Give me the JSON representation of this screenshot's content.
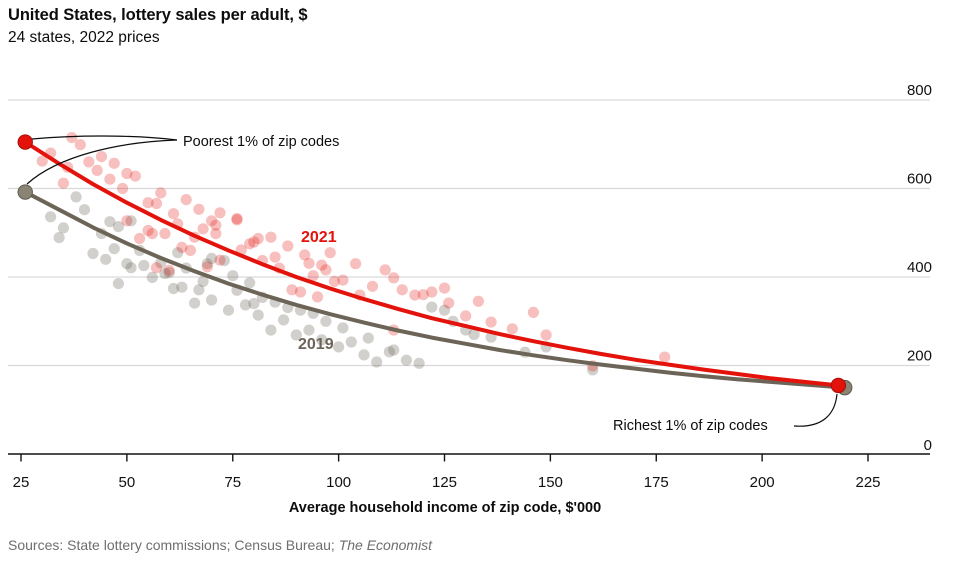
{
  "header": {
    "title": "United States, lottery sales per adult, $",
    "subtitle": "24 states, 2022 prices"
  },
  "footer": {
    "source_prefix": "Sources: State lottery commissions; Census Bureau; ",
    "source_italic": "The Economist"
  },
  "colors": {
    "red_2021": "#E3120B",
    "red_big_dot_stroke": "#a60d07",
    "olive_2019": "#6B6457",
    "olive_big_dot_fill": "#8A8474",
    "olive_big_dot_stroke": "#5f594c",
    "gridline": "#d9d9d9",
    "axis": "#121212",
    "leader": "#0d0d0d",
    "text": "#0d0d0d",
    "source_text": "#6e6e6e"
  },
  "chart_data": {
    "type": "scatter",
    "title": "United States, lottery sales per adult, $",
    "subtitle": "24 states, 2022 prices",
    "xlabel": "Average household income of zip code, $'000",
    "ylabel": "",
    "xlim": [
      22,
      240
    ],
    "ylim": [
      0,
      800
    ],
    "grid": "horizontal",
    "legend_position": "inline-labels",
    "x_ticks": [
      25,
      50,
      75,
      100,
      125,
      150,
      175,
      200,
      225
    ],
    "y_ticks": [
      0,
      200,
      400,
      600,
      800
    ],
    "annotations": [
      {
        "id": "poorest",
        "text": "Poorest 1% of zip codes"
      },
      {
        "id": "richest",
        "text": "Richest 1% of zip codes"
      }
    ],
    "series": [
      {
        "name": "2019",
        "color": "#6B6457",
        "point_opacity": 0.3,
        "endpoints": {
          "poorest": [
            26,
            592
          ],
          "richest": [
            219.5,
            150
          ]
        },
        "trend": [
          [
            26,
            592
          ],
          [
            34,
            552
          ],
          [
            42,
            512
          ],
          [
            50,
            476
          ],
          [
            58,
            443
          ],
          [
            66,
            413
          ],
          [
            74,
            385
          ],
          [
            82,
            360
          ],
          [
            90,
            337
          ],
          [
            98,
            316
          ],
          [
            106,
            297
          ],
          [
            114,
            279
          ],
          [
            122,
            263
          ],
          [
            130,
            249
          ],
          [
            138,
            235
          ],
          [
            146,
            223
          ],
          [
            154,
            212
          ],
          [
            162,
            202
          ],
          [
            170,
            193
          ],
          [
            178,
            184
          ],
          [
            186,
            176
          ],
          [
            194,
            169
          ],
          [
            202,
            163
          ],
          [
            210,
            157
          ],
          [
            219.5,
            150
          ]
        ],
        "points": [
          [
            38,
            581
          ],
          [
            40,
            552
          ],
          [
            32,
            536
          ],
          [
            35,
            511
          ],
          [
            34,
            489
          ],
          [
            46,
            525
          ],
          [
            48,
            514
          ],
          [
            51,
            527
          ],
          [
            42,
            453
          ],
          [
            47,
            464
          ],
          [
            44,
            498
          ],
          [
            50,
            430
          ],
          [
            48,
            385
          ],
          [
            51,
            421
          ],
          [
            45,
            440
          ],
          [
            53,
            460
          ],
          [
            54,
            426
          ],
          [
            56,
            399
          ],
          [
            59,
            408
          ],
          [
            61,
            374
          ],
          [
            63,
            377
          ],
          [
            66,
            341
          ],
          [
            69,
            430
          ],
          [
            70,
            442
          ],
          [
            73,
            437
          ],
          [
            60,
            410
          ],
          [
            58,
            432
          ],
          [
            64,
            420
          ],
          [
            68,
            390
          ],
          [
            62,
            455
          ],
          [
            67,
            371
          ],
          [
            70,
            348
          ],
          [
            74,
            325
          ],
          [
            78,
            337
          ],
          [
            81,
            314
          ],
          [
            84,
            280
          ],
          [
            87,
            303
          ],
          [
            90,
            269
          ],
          [
            93,
            280
          ],
          [
            96,
            258
          ],
          [
            100,
            242
          ],
          [
            75,
            403
          ],
          [
            79,
            387
          ],
          [
            82,
            354
          ],
          [
            85,
            343
          ],
          [
            88,
            331
          ],
          [
            91,
            325
          ],
          [
            94,
            318
          ],
          [
            76,
            370
          ],
          [
            80,
            340
          ],
          [
            97,
            300
          ],
          [
            103,
            253
          ],
          [
            106,
            224
          ],
          [
            109,
            208
          ],
          [
            112,
            231
          ],
          [
            116,
            212
          ],
          [
            119,
            205
          ],
          [
            122,
            332
          ],
          [
            125,
            325
          ],
          [
            130,
            280
          ],
          [
            136,
            264
          ],
          [
            149,
            242
          ],
          [
            101,
            285
          ],
          [
            107,
            262
          ],
          [
            113,
            235
          ],
          [
            127,
            300
          ],
          [
            132,
            270
          ],
          [
            144,
            230
          ],
          [
            160,
            190
          ]
        ]
      },
      {
        "name": "2021",
        "color": "#E3120B",
        "point_opacity": 0.27,
        "endpoints": {
          "poorest": [
            26,
            705
          ],
          "richest": [
            218,
            155
          ]
        },
        "trend": [
          [
            26,
            705
          ],
          [
            34,
            656
          ],
          [
            42,
            610
          ],
          [
            50,
            568
          ],
          [
            58,
            529
          ],
          [
            66,
            493
          ],
          [
            74,
            460
          ],
          [
            82,
            429
          ],
          [
            90,
            400
          ],
          [
            98,
            374
          ],
          [
            106,
            350
          ],
          [
            114,
            328
          ],
          [
            122,
            307
          ],
          [
            130,
            289
          ],
          [
            138,
            271
          ],
          [
            146,
            255
          ],
          [
            154,
            240
          ],
          [
            162,
            226
          ],
          [
            170,
            213
          ],
          [
            178,
            202
          ],
          [
            186,
            191
          ],
          [
            194,
            181
          ],
          [
            202,
            171
          ],
          [
            210,
            163
          ],
          [
            218,
            155
          ]
        ],
        "points": [
          [
            37,
            715
          ],
          [
            39,
            699
          ],
          [
            32,
            680
          ],
          [
            44,
            672
          ],
          [
            41,
            660
          ],
          [
            47,
            657
          ],
          [
            50,
            634
          ],
          [
            52,
            628
          ],
          [
            46,
            621
          ],
          [
            35,
            612
          ],
          [
            30,
            662
          ],
          [
            36,
            648
          ],
          [
            43,
            641
          ],
          [
            49,
            600
          ],
          [
            58,
            590
          ],
          [
            55,
            568
          ],
          [
            57,
            566
          ],
          [
            61,
            543
          ],
          [
            67,
            553
          ],
          [
            70,
            527
          ],
          [
            71,
            517
          ],
          [
            50,
            527
          ],
          [
            56,
            498
          ],
          [
            59,
            498
          ],
          [
            68,
            509
          ],
          [
            71,
            498
          ],
          [
            53,
            487
          ],
          [
            55,
            505
          ],
          [
            64,
            575
          ],
          [
            72,
            545
          ],
          [
            63,
            467
          ],
          [
            65,
            460
          ],
          [
            57,
            421
          ],
          [
            60,
            415
          ],
          [
            62,
            520
          ],
          [
            66,
            490
          ],
          [
            76,
            532
          ],
          [
            76,
            529
          ],
          [
            80,
            479
          ],
          [
            77,
            461
          ],
          [
            72,
            438
          ],
          [
            69,
            423
          ],
          [
            81,
            487
          ],
          [
            79,
            475
          ],
          [
            82,
            437
          ],
          [
            85,
            445
          ],
          [
            92,
            450
          ],
          [
            96,
            427
          ],
          [
            97,
            416
          ],
          [
            89,
            371
          ],
          [
            91,
            366
          ],
          [
            95,
            355
          ],
          [
            84,
            490
          ],
          [
            88,
            470
          ],
          [
            93,
            431
          ],
          [
            98,
            455
          ],
          [
            86,
            420
          ],
          [
            99,
            390
          ],
          [
            94,
            403
          ],
          [
            101,
            393
          ],
          [
            105,
            359
          ],
          [
            111,
            416
          ],
          [
            115,
            371
          ],
          [
            118,
            359
          ],
          [
            122,
            366
          ],
          [
            126,
            341
          ],
          [
            130,
            312
          ],
          [
            136,
            298
          ],
          [
            141,
            283
          ],
          [
            149,
            269
          ],
          [
            104,
            430
          ],
          [
            108,
            379
          ],
          [
            113,
            398
          ],
          [
            120,
            360
          ],
          [
            125,
            375
          ],
          [
            133,
            345
          ],
          [
            146,
            320
          ],
          [
            113,
            280
          ],
          [
            160,
            199
          ],
          [
            177,
            219
          ]
        ]
      }
    ]
  }
}
